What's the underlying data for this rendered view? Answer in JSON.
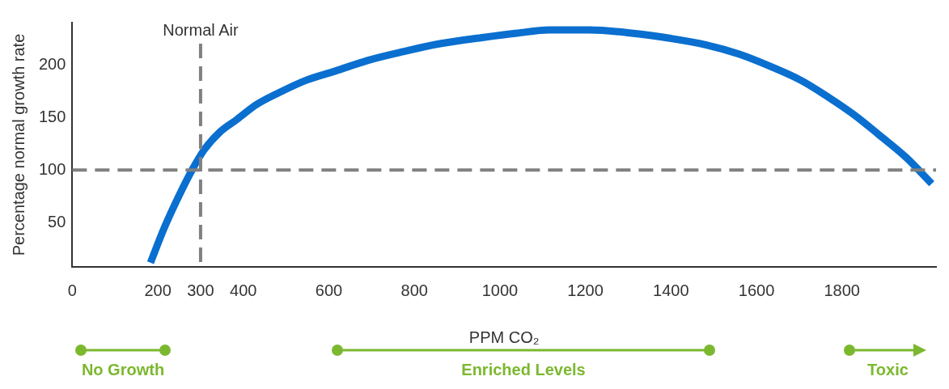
{
  "chart_data": {
    "type": "line",
    "xlabel": "PPM CO₂",
    "ylabel": "Percentage normal growth rate",
    "xlim": [
      0,
      2020
    ],
    "ylim": [
      8,
      240
    ],
    "xticks": [
      0,
      200,
      300,
      400,
      600,
      800,
      1000,
      1200,
      1400,
      1600,
      1800
    ],
    "yticks": [
      50,
      100,
      150,
      200
    ],
    "grid": false,
    "legend": false,
    "marker": "none",
    "line_style": "solid",
    "series": [
      {
        "color": "#0a6fcf",
        "x": [
          183,
          215,
          250,
          280,
          308,
          345,
          385,
          430,
          481,
          545,
          615,
          690,
          769,
          860,
          962,
          1040,
          1115,
          1210,
          1308,
          1400,
          1481,
          1560,
          1635,
          1705,
          1769,
          1830,
          1885,
          1950,
          2010
        ],
        "values": [
          12,
          45,
          76,
          100,
          119,
          136,
          148,
          162,
          173,
          185,
          194,
          204,
          212,
          220,
          226,
          230,
          233,
          233,
          230,
          225,
          219,
          210,
          198,
          185,
          169,
          152,
          134,
          112,
          87
        ]
      }
    ],
    "ref_lines": [
      {
        "axis": "x",
        "value": 300,
        "label": "Normal Air",
        "color": "#808080",
        "line_style": "dashed"
      },
      {
        "axis": "y",
        "value": 100,
        "label": null,
        "color": "#808080",
        "line_style": "dashed"
      }
    ],
    "annotations": [
      "No Growth",
      "Enriched Levels",
      "Toxic"
    ]
  }
}
